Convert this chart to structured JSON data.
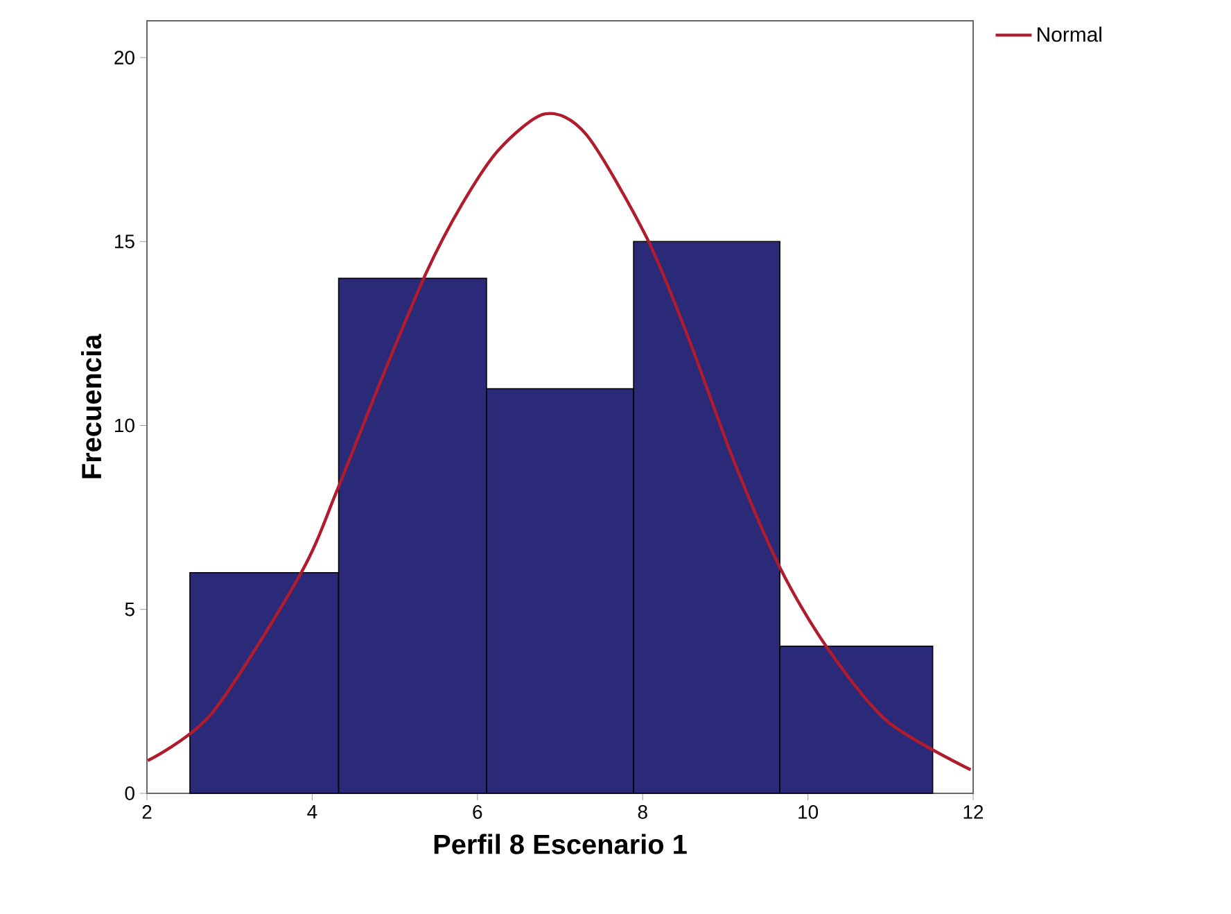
{
  "chart_data": {
    "type": "histogram",
    "xlabel": "Perfil 8 Escenario 1",
    "ylabel": "Frecuencia",
    "bins": [
      2.52,
      4.32,
      6.11,
      7.89,
      9.66,
      11.51
    ],
    "values": [
      6,
      14,
      11,
      15,
      4
    ],
    "color": "#2b2a78",
    "series": [
      {
        "type": "line",
        "name": "Normal",
        "color": "#b01c2e",
        "x": [
          2.01,
          2.79,
          3.86,
          4.3,
          4.81,
          5.37,
          5.81,
          6.26,
          6.82,
          7.32,
          8.05,
          8.55,
          9.11,
          9.67,
          10.23,
          10.96,
          11.97
        ],
        "values": [
          0.89,
          2.19,
          5.97,
          8.23,
          11.1,
          14.1,
          16.0,
          17.5,
          18.47,
          17.9,
          15.1,
          12.4,
          9.0,
          6.1,
          3.97,
          1.96,
          0.64
        ]
      }
    ],
    "xlim": [
      2,
      12
    ],
    "xticks": [
      2,
      4,
      6,
      8,
      10,
      12
    ],
    "ylim": [
      0,
      21
    ],
    "yticks": [
      0,
      5,
      10,
      15,
      20
    ],
    "legend": "top right"
  }
}
